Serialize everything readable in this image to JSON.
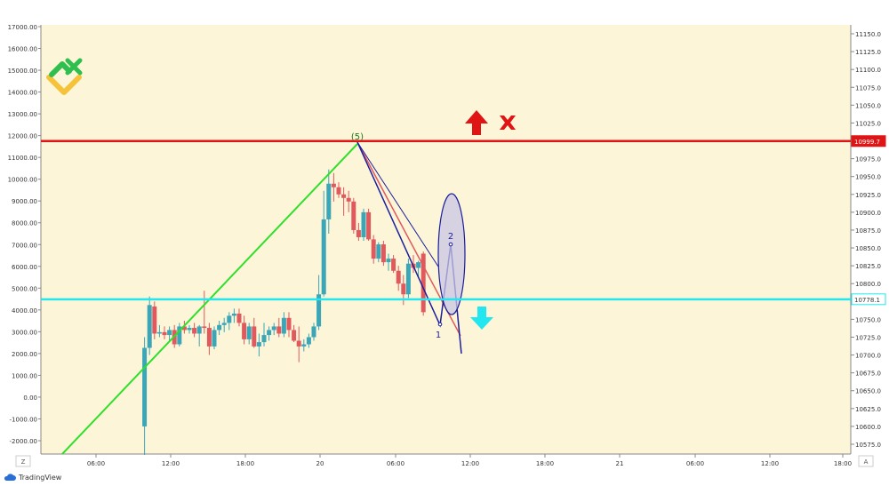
{
  "colors": {
    "background": "#fdf5d8",
    "bull": "#3aa6b8",
    "bear": "#e0595d",
    "resistance": "#e01414",
    "support": "#22e6f0",
    "wave": "#2ee02a",
    "pattern": "#1a1f9c",
    "ellipse_fill": "#c9c6e6",
    "logo_green": "#2ebf4f",
    "logo_yellow": "#f5c23a"
  },
  "branding": {
    "footer_label": "TradingView",
    "logo_icon": "broker-logo-icon"
  },
  "axes": {
    "left_ticks": [
      "17000.00",
      "16000.00",
      "15000.00",
      "14000.00",
      "13000.00",
      "12000.00",
      "11000.00",
      "10000.00",
      "9000.00",
      "8000.00",
      "7000.00",
      "6000.00",
      "5000.00",
      "4000.00",
      "3000.00",
      "2000.00",
      "1000.00",
      "0.00",
      "-1000.00",
      "-2000.00"
    ],
    "right_ticks": [
      "11150.0",
      "11125.0",
      "11100.0",
      "11075.0",
      "11050.0",
      "11025.0",
      "11000.0",
      "10975.0",
      "10950.0",
      "10925.0",
      "10900.0",
      "10875.0",
      "10850.0",
      "10825.0",
      "10800.0",
      "10775.0",
      "10750.0",
      "10725.0",
      "10700.0",
      "10675.0",
      "10650.0",
      "10625.0",
      "10600.0",
      "10575.0"
    ],
    "time_labels": [
      "06:00",
      "12:00",
      "18:00",
      "20",
      "06:00",
      "12:00",
      "18:00",
      "21",
      "06:00",
      "12:00",
      "18:00"
    ],
    "corner_left": "Z",
    "corner_right": "A"
  },
  "annotations": {
    "wave_label": "(5)",
    "point_1": "1",
    "point_2": "2",
    "upper_arrow": "up-arrow-icon",
    "cancel_mark": "x-mark-icon",
    "lower_arrow": "down-arrow-icon"
  },
  "chart_data": {
    "type": "candlestick",
    "right_axis_range": [
      10562,
      11162
    ],
    "left_axis_range": [
      -2500,
      17000
    ],
    "levels": [
      {
        "value": 10999.7,
        "label": "10999.7"
      },
      {
        "value": 10778.1,
        "label": "10778.1"
      }
    ],
    "candles": [
      {
        "t": 9.9,
        "o": 10600,
        "h": 10725,
        "l": 10560,
        "c": 10710
      },
      {
        "t": 10.3,
        "o": 10710,
        "h": 10782,
        "l": 10700,
        "c": 10770
      },
      {
        "t": 10.7,
        "o": 10768,
        "h": 10775,
        "l": 10722,
        "c": 10730
      },
      {
        "t": 11.1,
        "o": 10730,
        "h": 10742,
        "l": 10725,
        "c": 10732
      },
      {
        "t": 11.5,
        "o": 10732,
        "h": 10740,
        "l": 10722,
        "c": 10728
      },
      {
        "t": 11.9,
        "o": 10728,
        "h": 10740,
        "l": 10720,
        "c": 10735
      },
      {
        "t": 12.3,
        "o": 10735,
        "h": 10742,
        "l": 10710,
        "c": 10715
      },
      {
        "t": 12.7,
        "o": 10715,
        "h": 10745,
        "l": 10712,
        "c": 10740
      },
      {
        "t": 13.1,
        "o": 10740,
        "h": 10748,
        "l": 10730,
        "c": 10735
      },
      {
        "t": 13.5,
        "o": 10735,
        "h": 10742,
        "l": 10730,
        "c": 10738
      },
      {
        "t": 13.9,
        "o": 10738,
        "h": 10745,
        "l": 10725,
        "c": 10730
      },
      {
        "t": 14.3,
        "o": 10730,
        "h": 10742,
        "l": 10712,
        "c": 10740
      },
      {
        "t": 14.7,
        "o": 10740,
        "h": 10790,
        "l": 10730,
        "c": 10738
      },
      {
        "t": 15.1,
        "o": 10738,
        "h": 10745,
        "l": 10700,
        "c": 10712
      },
      {
        "t": 15.5,
        "o": 10712,
        "h": 10740,
        "l": 10708,
        "c": 10735
      },
      {
        "t": 15.9,
        "o": 10735,
        "h": 10748,
        "l": 10728,
        "c": 10742
      },
      {
        "t": 16.3,
        "o": 10742,
        "h": 10752,
        "l": 10732,
        "c": 10745
      },
      {
        "t": 16.7,
        "o": 10745,
        "h": 10760,
        "l": 10735,
        "c": 10755
      },
      {
        "t": 17.1,
        "o": 10755,
        "h": 10765,
        "l": 10745,
        "c": 10758
      },
      {
        "t": 17.5,
        "o": 10758,
        "h": 10765,
        "l": 10740,
        "c": 10745
      },
      {
        "t": 17.9,
        "o": 10745,
        "h": 10755,
        "l": 10715,
        "c": 10722
      },
      {
        "t": 18.3,
        "o": 10722,
        "h": 10745,
        "l": 10715,
        "c": 10740
      },
      {
        "t": 18.7,
        "o": 10740,
        "h": 10752,
        "l": 10710,
        "c": 10712
      },
      {
        "t": 19.1,
        "o": 10712,
        "h": 10730,
        "l": 10698,
        "c": 10718
      },
      {
        "t": 19.5,
        "o": 10718,
        "h": 10745,
        "l": 10712,
        "c": 10728
      },
      {
        "t": 19.9,
        "o": 10728,
        "h": 10740,
        "l": 10720,
        "c": 10735
      },
      {
        "t": 20.3,
        "o": 10735,
        "h": 10745,
        "l": 10728,
        "c": 10740
      },
      {
        "t": 20.7,
        "o": 10740,
        "h": 10752,
        "l": 10725,
        "c": 10730
      },
      {
        "t": 21.1,
        "o": 10730,
        "h": 10760,
        "l": 10725,
        "c": 10752
      },
      {
        "t": 21.5,
        "o": 10752,
        "h": 10760,
        "l": 10725,
        "c": 10735
      },
      {
        "t": 21.9,
        "o": 10735,
        "h": 10742,
        "l": 10718,
        "c": 10720
      },
      {
        "t": 22.3,
        "o": 10720,
        "h": 10740,
        "l": 10690,
        "c": 10712
      },
      {
        "t": 22.7,
        "o": 10712,
        "h": 10722,
        "l": 10705,
        "c": 10715
      },
      {
        "t": 23.1,
        "o": 10715,
        "h": 10730,
        "l": 10710,
        "c": 10725
      },
      {
        "t": 23.5,
        "o": 10725,
        "h": 10745,
        "l": 10720,
        "c": 10740
      },
      {
        "t": 23.9,
        "o": 10740,
        "h": 10812,
        "l": 10735,
        "c": 10785
      },
      {
        "t": 24.3,
        "o": 10785,
        "h": 10930,
        "l": 10782,
        "c": 10890
      },
      {
        "t": 24.7,
        "o": 10890,
        "h": 10960,
        "l": 10870,
        "c": 10940
      },
      {
        "t": 25.1,
        "o": 10940,
        "h": 10955,
        "l": 10915,
        "c": 10935
      },
      {
        "t": 25.5,
        "o": 10935,
        "h": 10942,
        "l": 10920,
        "c": 10925
      },
      {
        "t": 25.9,
        "o": 10925,
        "h": 10935,
        "l": 10895,
        "c": 10920
      },
      {
        "t": 26.3,
        "o": 10920,
        "h": 10930,
        "l": 10900,
        "c": 10915
      },
      {
        "t": 26.7,
        "o": 10915,
        "h": 10920,
        "l": 10870,
        "c": 10875
      },
      {
        "t": 27.1,
        "o": 10875,
        "h": 10885,
        "l": 10860,
        "c": 10865
      },
      {
        "t": 27.5,
        "o": 10865,
        "h": 10905,
        "l": 10860,
        "c": 10900
      },
      {
        "t": 27.9,
        "o": 10900,
        "h": 10905,
        "l": 10860,
        "c": 10862
      },
      {
        "t": 28.3,
        "o": 10862,
        "h": 10868,
        "l": 10828,
        "c": 10835
      },
      {
        "t": 28.7,
        "o": 10835,
        "h": 10858,
        "l": 10830,
        "c": 10855
      },
      {
        "t": 29.1,
        "o": 10855,
        "h": 10860,
        "l": 10825,
        "c": 10830
      },
      {
        "t": 29.5,
        "o": 10830,
        "h": 10842,
        "l": 10818,
        "c": 10835
      },
      {
        "t": 29.9,
        "o": 10835,
        "h": 10840,
        "l": 10815,
        "c": 10818
      },
      {
        "t": 30.3,
        "o": 10818,
        "h": 10825,
        "l": 10790,
        "c": 10800
      },
      {
        "t": 30.7,
        "o": 10800,
        "h": 10812,
        "l": 10770,
        "c": 10785
      },
      {
        "t": 31.1,
        "o": 10785,
        "h": 10835,
        "l": 10780,
        "c": 10828
      },
      {
        "t": 31.5,
        "o": 10828,
        "h": 10840,
        "l": 10815,
        "c": 10822
      },
      {
        "t": 31.9,
        "o": 10822,
        "h": 10832,
        "l": 10808,
        "c": 10830
      },
      {
        "t": 32.3,
        "o": 10842,
        "h": 10845,
        "l": 10755,
        "c": 10760
      }
    ]
  }
}
